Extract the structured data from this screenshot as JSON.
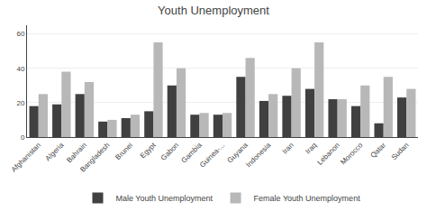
{
  "chart_data": {
    "type": "bar",
    "title": "Youth Unemployment",
    "categories": [
      "Afghanistan",
      "Algeria",
      "Bahrain",
      "Bangladesh",
      "Brunei",
      "Egypt",
      "Gabon",
      "Gambia",
      "Guinea-...",
      "Guyana",
      "Indonesia",
      "Iran",
      "Iraq",
      "Lebanon",
      "Morocco",
      "Qatar",
      "Sudan"
    ],
    "series": [
      {
        "name": "Male Youth Unemployment",
        "color": "#404040",
        "values": [
          18,
          19,
          25,
          9,
          11,
          15,
          30,
          13,
          13,
          35,
          21,
          24,
          28,
          22,
          18,
          8,
          23
        ]
      },
      {
        "name": "Female Youth Unemployment",
        "color": "#b8b8b8",
        "values": [
          25,
          38,
          32,
          10,
          13,
          55,
          40,
          14,
          14,
          46,
          25,
          40,
          55,
          22,
          30,
          35,
          28
        ]
      }
    ],
    "ylim": [
      0,
      65
    ],
    "yticks": [
      0,
      20,
      40,
      60
    ],
    "grid": true,
    "legend": "bottom"
  }
}
